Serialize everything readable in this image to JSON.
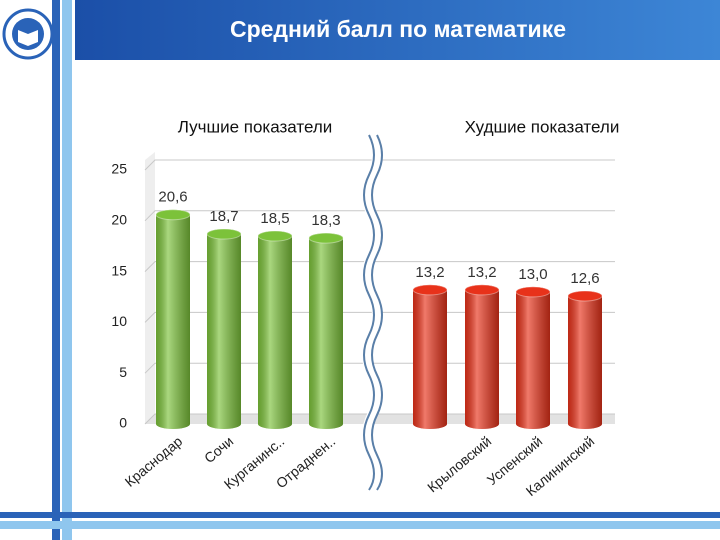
{
  "chart_data": {
    "type": "bar",
    "title": "Средний балл по математике",
    "subtitles": [
      "Лучшие показатели",
      "Худшие показатели"
    ],
    "categories": [
      "Краснодар",
      "Сочи",
      "Курганинс..",
      "Отраднен..",
      null,
      "Крыловский",
      "Успенский",
      "Калининский"
    ],
    "values": [
      20.6,
      18.7,
      18.5,
      18.3,
      13.2,
      13.2,
      13.0,
      12.6
    ],
    "value_labels": [
      "20,6",
      "18,7",
      "18,5",
      "18,3",
      "13,2",
      "13,2",
      "13,0",
      "12,6"
    ],
    "colors": [
      "#7cc23a",
      "#7cc23a",
      "#7cc23a",
      "#7cc23a",
      "#e8321a",
      "#e8321a",
      "#e8321a",
      "#e8321a"
    ],
    "ylim": [
      0,
      25
    ],
    "yticks": [
      0,
      5,
      10,
      15,
      20,
      25
    ],
    "grid": true
  }
}
